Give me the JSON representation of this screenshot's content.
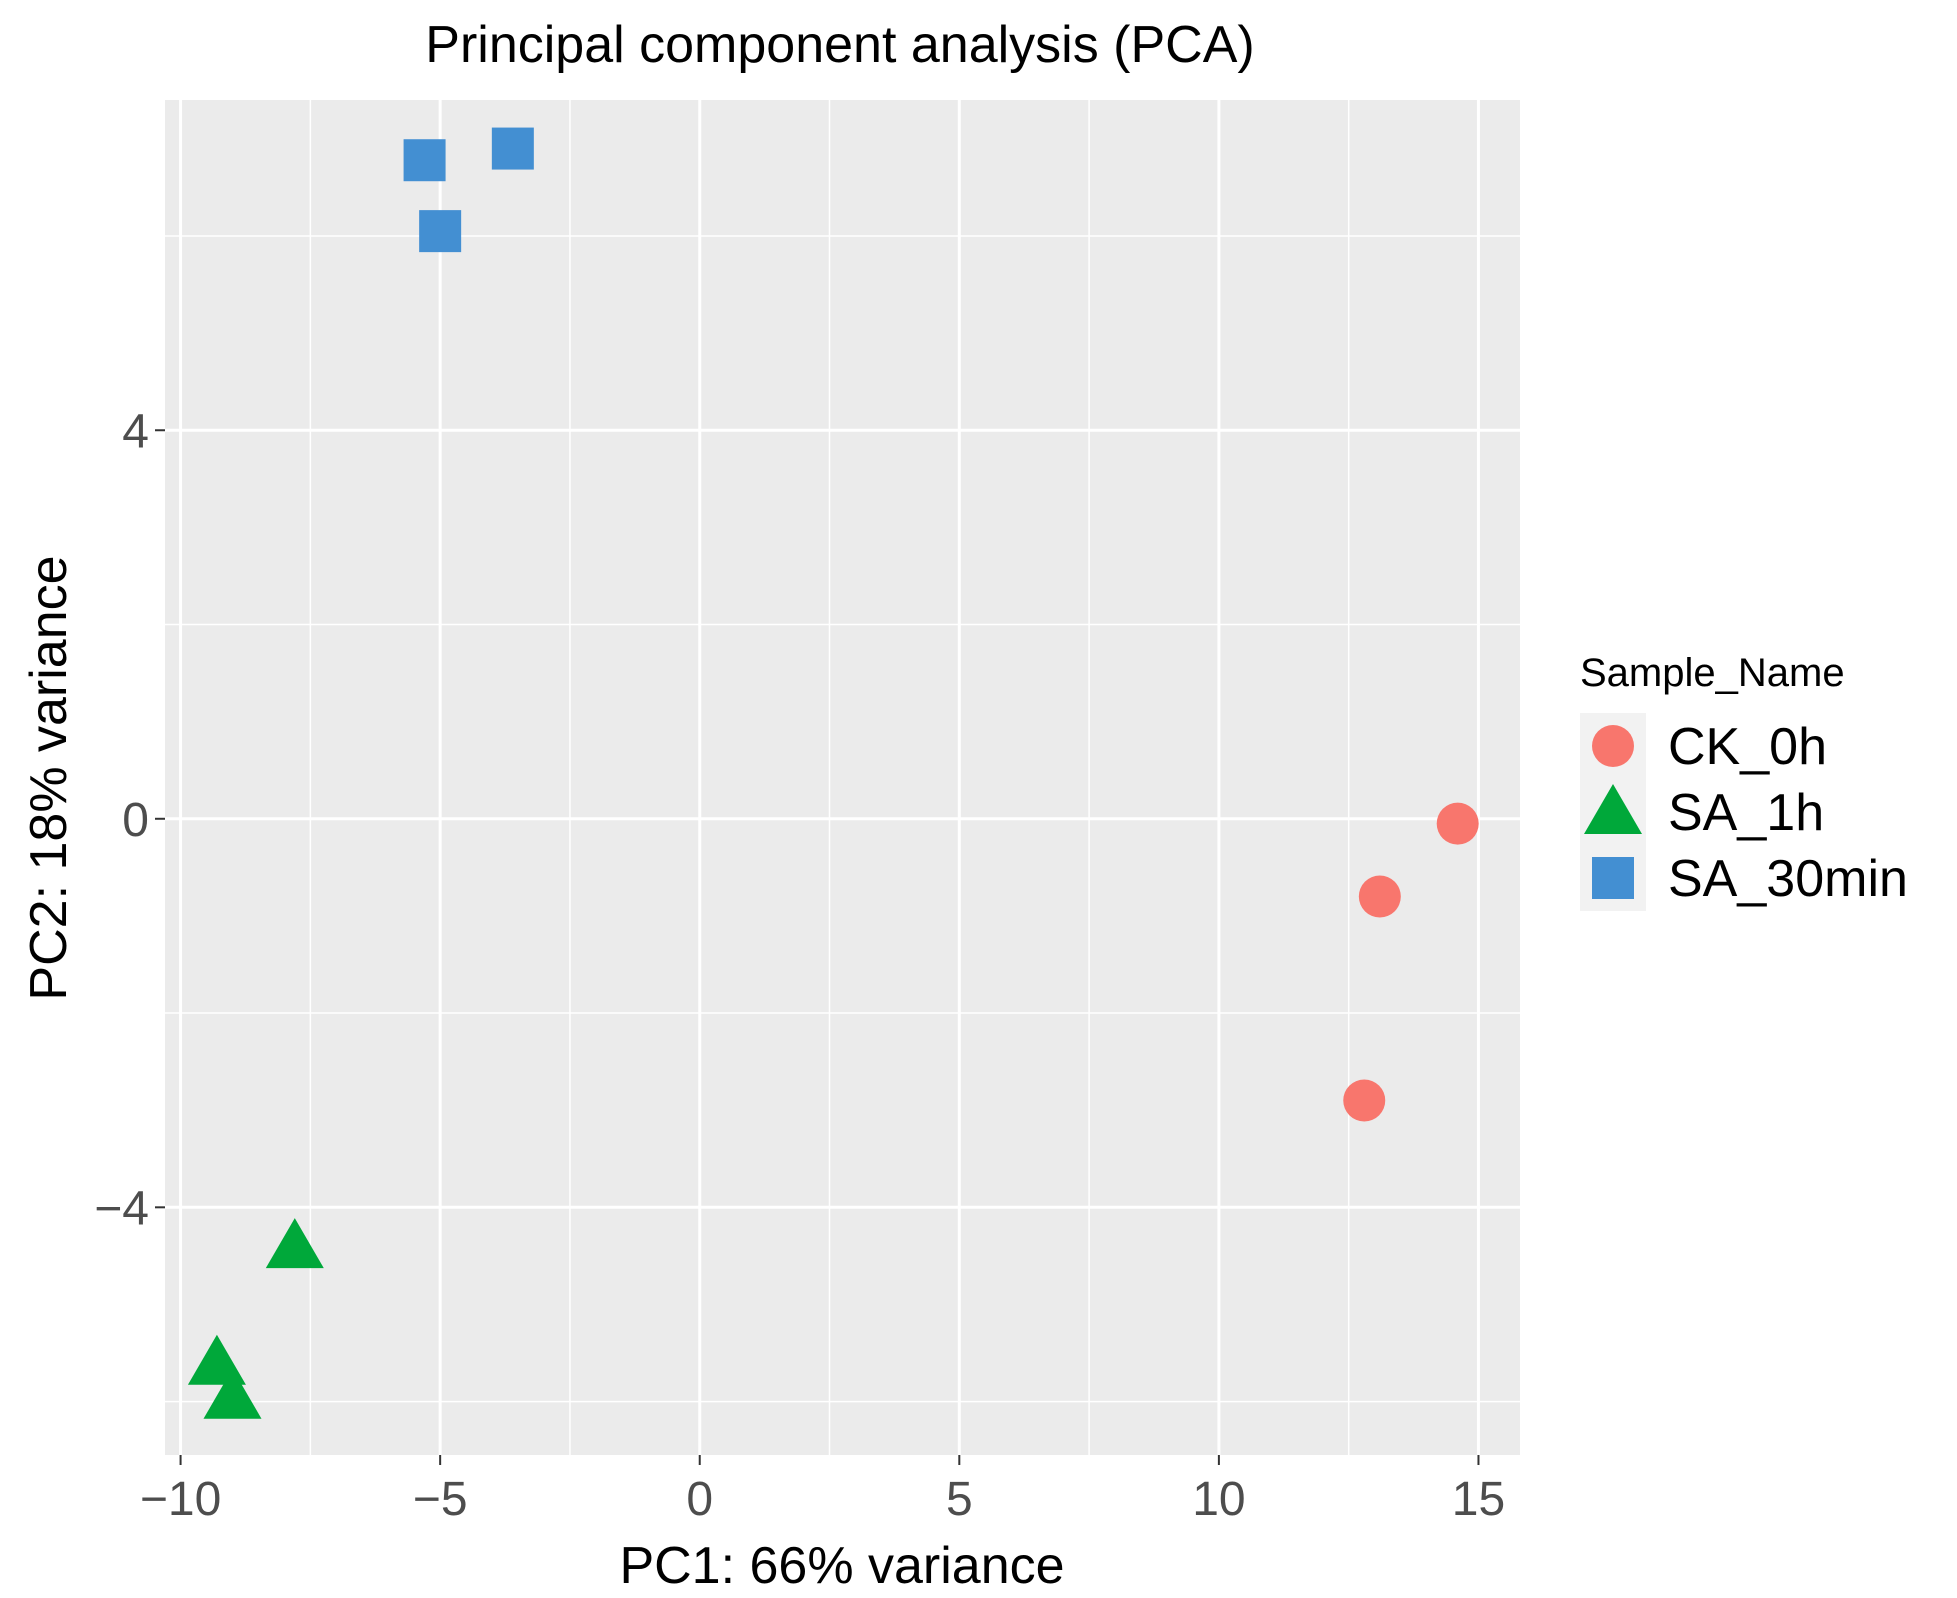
{
  "chart_data": {
    "type": "scatter",
    "title": "Principal component analysis (PCA)",
    "xlabel": "PC1: 66% variance",
    "ylabel": "PC2: 18% variance",
    "xlim": [
      -10.3,
      15.8
    ],
    "ylim": [
      -6.55,
      7.4
    ],
    "x_ticks": [
      -10,
      -5,
      0,
      5,
      10,
      15
    ],
    "x_tick_labels": [
      "−10",
      "−5",
      "0",
      "5",
      "10",
      "15"
    ],
    "y_ticks": [
      -4,
      0,
      4
    ],
    "y_tick_labels": [
      "−4",
      "0",
      "4"
    ],
    "grid": true,
    "legend": {
      "title": "Sample_Name",
      "position": "right"
    },
    "series": [
      {
        "name": "CK_0h",
        "shape": "circle",
        "color": "#f8766d",
        "points": [
          {
            "x": 14.6,
            "y": -0.05
          },
          {
            "x": 13.1,
            "y": -0.8
          },
          {
            "x": 12.8,
            "y": -2.9
          }
        ]
      },
      {
        "name": "SA_1h",
        "shape": "triangle",
        "color": "#00a83a",
        "points": [
          {
            "x": -7.8,
            "y": -4.4
          },
          {
            "x": -9.3,
            "y": -5.6
          },
          {
            "x": -9.0,
            "y": -5.95
          }
        ]
      },
      {
        "name": "SA_30min",
        "shape": "square",
        "color": "#438fd2",
        "points": [
          {
            "x": -3.6,
            "y": 6.9
          },
          {
            "x": -5.3,
            "y": 6.78
          },
          {
            "x": -5.0,
            "y": 6.05
          }
        ]
      }
    ],
    "colors": {
      "panel_background": "#ebebeb",
      "grid": "#ffffff"
    }
  }
}
